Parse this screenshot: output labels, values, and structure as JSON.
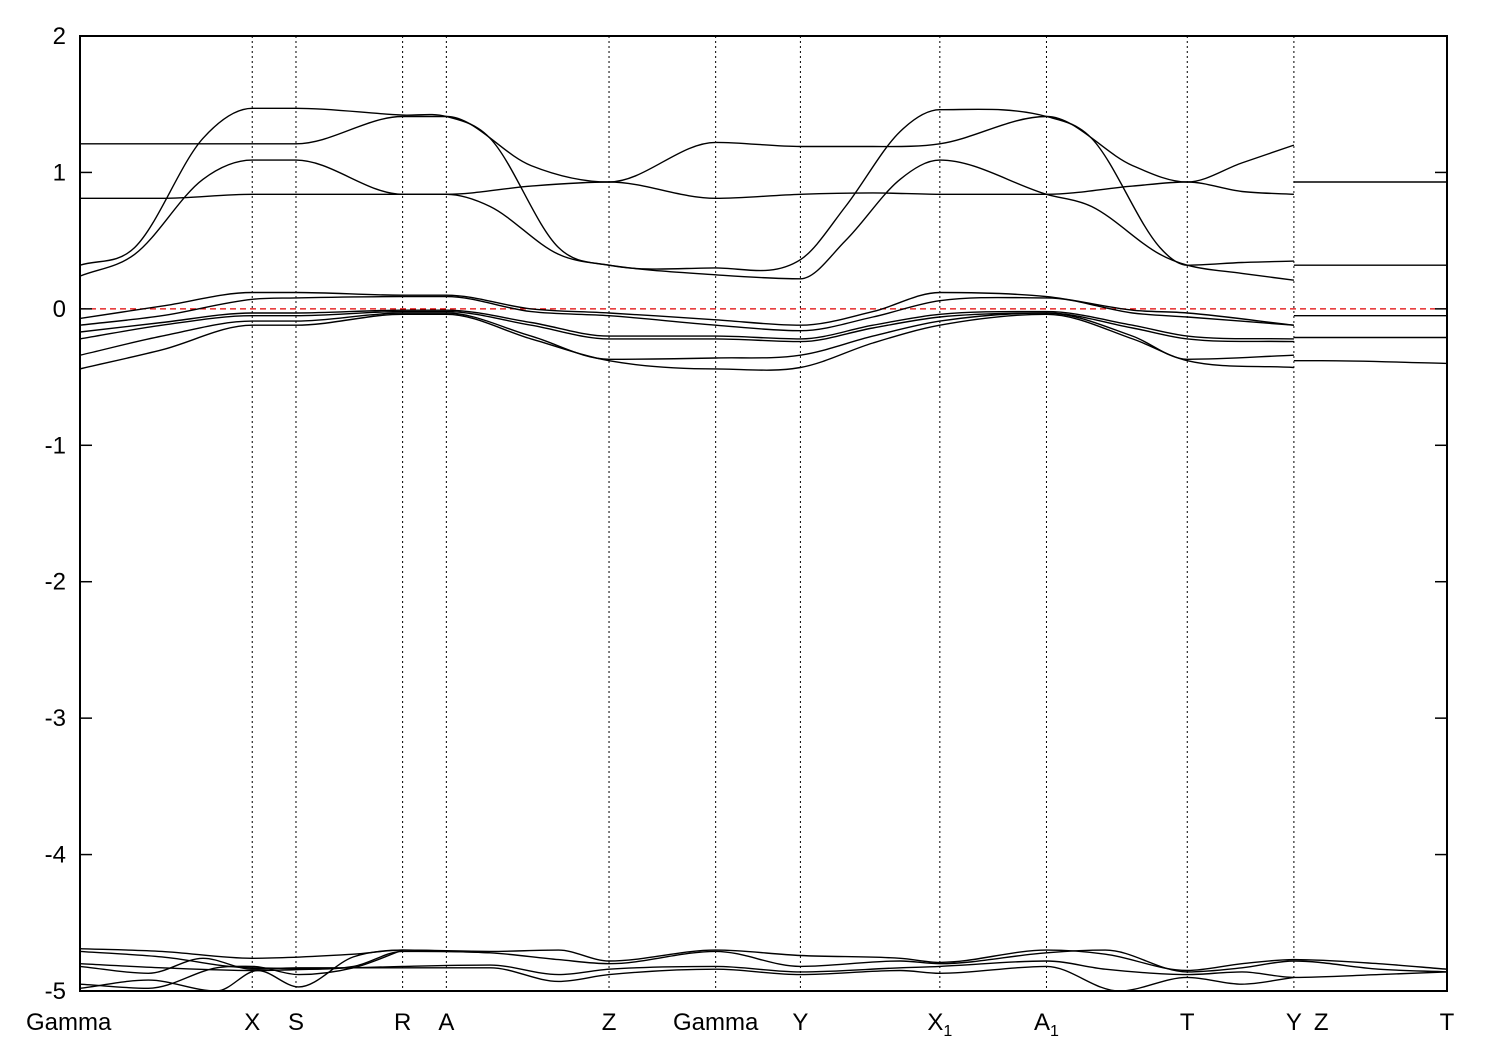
{
  "chart_data": {
    "type": "line",
    "title": "",
    "xlabel": "",
    "ylabel": "",
    "ylim": [
      -5,
      2
    ],
    "xlim": [
      0,
      1.0
    ],
    "grid": false,
    "legend": "none",
    "fermi_level": 0,
    "colors": {
      "bands": "#000000",
      "fermi": "#e00000",
      "frame": "#000000"
    },
    "y_ticks": [
      {
        "v": 2,
        "label": "2"
      },
      {
        "v": 1,
        "label": "1"
      },
      {
        "v": 0,
        "label": "0"
      },
      {
        "v": -1,
        "label": "-1"
      },
      {
        "v": -2,
        "label": "-2"
      },
      {
        "v": -3,
        "label": "-3"
      },
      {
        "v": -4,
        "label": "-4"
      },
      {
        "v": -5,
        "label": "-5"
      }
    ],
    "k_points": [
      {
        "x": 0.0,
        "label": "Gamma",
        "sub": "",
        "line": false
      },
      {
        "x": 0.126,
        "label": "X",
        "sub": "",
        "line": true
      },
      {
        "x": 0.158,
        "label": "S",
        "sub": "",
        "line": true
      },
      {
        "x": 0.236,
        "label": "R",
        "sub": "",
        "line": true
      },
      {
        "x": 0.268,
        "label": "A",
        "sub": "",
        "line": true
      },
      {
        "x": 0.387,
        "label": "Z",
        "sub": "",
        "line": true
      },
      {
        "x": 0.465,
        "label": "Gamma",
        "sub": "",
        "line": true
      },
      {
        "x": 0.527,
        "label": "Y",
        "sub": "",
        "line": true
      },
      {
        "x": 0.629,
        "label": "X",
        "sub": "1",
        "line": true
      },
      {
        "x": 0.707,
        "label": "A",
        "sub": "1",
        "line": true
      },
      {
        "x": 0.81,
        "label": "T",
        "sub": "",
        "line": true
      },
      {
        "x": 0.888,
        "label": "Y",
        "sub": "",
        "line": true
      },
      {
        "x": 0.908,
        "label": "Z",
        "sub": "",
        "line": false
      },
      {
        "x": 1.0,
        "label": "T",
        "sub": "",
        "line": false
      }
    ],
    "series": [
      {
        "x": [
          0,
          0.06,
          0.126,
          0.158,
          0.236,
          0.268,
          0.33,
          0.387,
          0.465,
          0.527,
          0.58,
          0.629,
          0.707,
          0.77,
          0.81,
          0.85,
          0.888
        ],
        "values": [
          1.21,
          1.21,
          1.21,
          1.21,
          1.41,
          1.41,
          1.05,
          0.93,
          1.22,
          1.19,
          1.19,
          1.21,
          1.41,
          1.05,
          0.93,
          1.07,
          1.2
        ]
      },
      {
        "x": [
          0,
          0.06,
          0.126,
          0.158,
          0.236,
          0.268,
          0.33,
          0.387,
          0.465,
          0.527,
          0.58,
          0.629,
          0.707,
          0.77,
          0.81,
          0.85,
          0.888
        ],
        "values": [
          0.81,
          0.81,
          0.84,
          0.84,
          0.84,
          0.84,
          0.9,
          0.93,
          0.81,
          0.84,
          0.85,
          0.84,
          0.84,
          0.9,
          0.93,
          0.86,
          0.84
        ]
      },
      {
        "x": [
          0,
          0.04,
          0.09,
          0.126,
          0.158,
          0.236,
          0.268,
          0.3,
          0.35,
          0.387,
          0.465,
          0.527,
          0.56,
          0.6,
          0.629,
          0.707,
          0.74,
          0.79,
          0.81,
          0.85,
          0.888
        ],
        "values": [
          0.32,
          0.45,
          1.25,
          1.47,
          1.47,
          1.42,
          1.41,
          1.25,
          0.45,
          0.32,
          0.3,
          0.36,
          0.75,
          1.3,
          1.46,
          1.41,
          1.25,
          0.45,
          0.32,
          0.34,
          0.35
        ]
      },
      {
        "x": [
          0,
          0.04,
          0.09,
          0.126,
          0.158,
          0.236,
          0.268,
          0.3,
          0.35,
          0.387,
          0.465,
          0.527,
          0.56,
          0.6,
          0.629,
          0.707,
          0.74,
          0.79,
          0.81,
          0.85,
          0.888
        ],
        "values": [
          0.24,
          0.4,
          0.95,
          1.09,
          1.09,
          0.84,
          0.84,
          0.75,
          0.4,
          0.32,
          0.25,
          0.22,
          0.5,
          0.95,
          1.09,
          0.84,
          0.75,
          0.4,
          0.32,
          0.26,
          0.21
        ]
      },
      {
        "x": [
          0.888,
          0.908,
          1.0
        ],
        "values": [
          0.93,
          0.93,
          0.93
        ]
      },
      {
        "x": [
          0.888,
          0.908,
          1.0
        ],
        "values": [
          0.32,
          0.32,
          0.32
        ]
      },
      {
        "x": [
          0,
          0.06,
          0.126,
          0.158,
          0.236,
          0.268,
          0.33,
          0.387,
          0.465,
          0.527,
          0.58,
          0.629,
          0.707,
          0.77,
          0.81,
          0.888
        ],
        "values": [
          -0.07,
          0.02,
          0.12,
          0.12,
          0.1,
          0.1,
          0.0,
          -0.03,
          -0.08,
          -0.12,
          -0.02,
          0.12,
          0.09,
          -0.01,
          -0.03,
          -0.12
        ]
      },
      {
        "x": [
          0,
          0.06,
          0.126,
          0.158,
          0.236,
          0.268,
          0.33,
          0.387,
          0.465,
          0.527,
          0.58,
          0.629,
          0.707,
          0.77,
          0.81,
          0.888
        ],
        "values": [
          -0.12,
          -0.05,
          0.07,
          0.08,
          0.09,
          0.09,
          -0.02,
          -0.05,
          -0.12,
          -0.16,
          -0.06,
          0.06,
          0.08,
          -0.03,
          -0.06,
          -0.12
        ]
      },
      {
        "x": [
          0,
          0.06,
          0.126,
          0.158,
          0.236,
          0.268,
          0.33,
          0.387,
          0.465,
          0.527,
          0.58,
          0.629,
          0.707,
          0.77,
          0.81,
          0.888
        ],
        "values": [
          -0.17,
          -0.1,
          -0.03,
          -0.03,
          -0.01,
          -0.01,
          -0.1,
          -0.2,
          -0.2,
          -0.22,
          -0.12,
          -0.04,
          -0.02,
          -0.12,
          -0.2,
          -0.22
        ]
      },
      {
        "x": [
          0,
          0.06,
          0.126,
          0.158,
          0.236,
          0.268,
          0.33,
          0.387,
          0.465,
          0.527,
          0.58,
          0.629,
          0.707,
          0.77,
          0.81,
          0.888
        ],
        "values": [
          -0.22,
          -0.12,
          -0.05,
          -0.05,
          -0.02,
          -0.02,
          -0.12,
          -0.22,
          -0.22,
          -0.24,
          -0.14,
          -0.06,
          -0.03,
          -0.14,
          -0.22,
          -0.24
        ]
      },
      {
        "x": [
          0,
          0.06,
          0.126,
          0.158,
          0.236,
          0.268,
          0.33,
          0.387,
          0.465,
          0.527,
          0.58,
          0.629,
          0.707,
          0.77,
          0.81,
          0.888
        ],
        "values": [
          -0.34,
          -0.2,
          -0.09,
          -0.09,
          -0.03,
          -0.03,
          -0.2,
          -0.37,
          -0.36,
          -0.34,
          -0.2,
          -0.09,
          -0.03,
          -0.2,
          -0.37,
          -0.34
        ]
      },
      {
        "x": [
          0,
          0.06,
          0.126,
          0.158,
          0.236,
          0.268,
          0.33,
          0.387,
          0.465,
          0.527,
          0.58,
          0.629,
          0.707,
          0.77,
          0.81,
          0.888
        ],
        "values": [
          -0.44,
          -0.3,
          -0.12,
          -0.12,
          -0.04,
          -0.04,
          -0.22,
          -0.38,
          -0.44,
          -0.43,
          -0.25,
          -0.12,
          -0.04,
          -0.22,
          -0.38,
          -0.43
        ]
      },
      {
        "x": [
          0.888,
          0.908,
          1.0
        ],
        "values": [
          -0.05,
          -0.05,
          -0.05
        ]
      },
      {
        "x": [
          0.888,
          0.908,
          1.0
        ],
        "values": [
          -0.21,
          -0.21,
          -0.21
        ]
      },
      {
        "x": [
          0.888,
          0.908,
          1.0
        ],
        "values": [
          -0.38,
          -0.38,
          -0.4
        ]
      },
      {
        "x": [
          0,
          0.06,
          0.126,
          0.2,
          0.236,
          0.3,
          0.35,
          0.387,
          0.465,
          0.527,
          0.6,
          0.629,
          0.707,
          0.75,
          0.81,
          0.85,
          0.888,
          0.95,
          1.0
        ],
        "values": [
          -4.69,
          -4.71,
          -4.76,
          -4.73,
          -4.7,
          -4.71,
          -4.7,
          -4.78,
          -4.7,
          -4.74,
          -4.76,
          -4.79,
          -4.7,
          -4.73,
          -4.85,
          -4.8,
          -4.77,
          -4.8,
          -4.84
        ]
      },
      {
        "x": [
          0,
          0.06,
          0.126,
          0.2,
          0.236,
          0.3,
          0.35,
          0.387,
          0.465,
          0.527,
          0.6,
          0.629,
          0.707,
          0.75,
          0.81,
          0.85,
          0.888,
          0.95,
          1.0
        ],
        "values": [
          -4.71,
          -4.75,
          -4.83,
          -4.82,
          -4.71,
          -4.72,
          -4.77,
          -4.8,
          -4.71,
          -4.82,
          -4.78,
          -4.8,
          -4.72,
          -4.7,
          -4.86,
          -4.83,
          -4.78,
          -4.84,
          -4.86
        ]
      },
      {
        "x": [
          0,
          0.06,
          0.126,
          0.2,
          0.236,
          0.3,
          0.35,
          0.387,
          0.465,
          0.527,
          0.6,
          0.629,
          0.707,
          0.75,
          0.81,
          0.85,
          0.888,
          0.95,
          1.0
        ],
        "values": [
          -4.8,
          -4.83,
          -4.85,
          -4.83,
          -4.82,
          -4.81,
          -4.88,
          -4.84,
          -4.82,
          -4.86,
          -4.83,
          -4.82,
          -4.78,
          -4.84,
          -4.88,
          -4.86,
          -4.9,
          -4.88,
          -4.86
        ]
      },
      {
        "x": [
          0,
          0.05,
          0.09,
          0.126,
          0.16,
          0.236,
          0.3,
          0.35,
          0.387,
          0.465,
          0.527,
          0.6,
          0.629,
          0.707,
          0.76,
          0.81,
          0.85,
          0.888
        ],
        "values": [
          -4.82,
          -4.87,
          -4.76,
          -4.84,
          -4.83,
          -4.83,
          -4.83,
          -4.93,
          -4.88,
          -4.84,
          -4.88,
          -4.85,
          -4.87,
          -4.82,
          -5.0,
          -4.9,
          -4.95,
          -4.9
        ]
      },
      {
        "x": [
          0,
          0.05,
          0.1,
          0.126,
          0.16,
          0.2,
          0.236
        ],
        "values": [
          -4.95,
          -4.98,
          -4.83,
          -4.82,
          -4.88,
          -4.83,
          -4.7
        ]
      },
      {
        "x": [
          0,
          0.05,
          0.1,
          0.13,
          0.16,
          0.2,
          0.236,
          0.3
        ],
        "values": [
          -4.98,
          -4.92,
          -5.0,
          -4.85,
          -4.97,
          -4.75,
          -4.7,
          -4.72
        ]
      }
    ]
  }
}
